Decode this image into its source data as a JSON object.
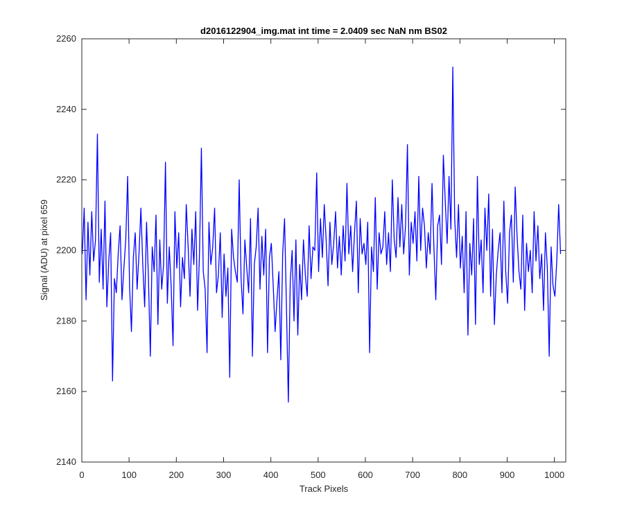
{
  "chart_data": {
    "type": "line",
    "title": "d2016122904_img.mat int time = 2.0409 sec  NaN nm BS02",
    "xlabel": "Track Pixels",
    "ylabel": "Signal (ADU) at pixel 659",
    "xlim": [
      0,
      1024
    ],
    "ylim": [
      2140,
      2260
    ],
    "xticks": [
      "0",
      "100",
      "200",
      "300",
      "400",
      "500",
      "600",
      "700",
      "800",
      "900",
      "1000"
    ],
    "xtick_values": [
      0,
      100,
      200,
      300,
      400,
      500,
      600,
      700,
      800,
      900,
      1000
    ],
    "yticks": [
      "2140",
      "2160",
      "2180",
      "2200",
      "2220",
      "2240",
      "2260"
    ],
    "ytick_values": [
      2140,
      2160,
      2180,
      2200,
      2220,
      2240,
      2260
    ],
    "grid": false,
    "series": [
      {
        "color": "#0000ff",
        "x_start": 1,
        "x_step": 4,
        "values": [
          2199,
          2212,
          2186,
          2208,
          2193,
          2211,
          2197,
          2203,
          2233,
          2191,
          2206,
          2189,
          2214,
          2184,
          2197,
          2205,
          2163,
          2192,
          2188,
          2199,
          2207,
          2186,
          2195,
          2203,
          2221,
          2190,
          2177,
          2198,
          2205,
          2189,
          2199,
          2212,
          2196,
          2184,
          2208,
          2192,
          2170,
          2201,
          2194,
          2210,
          2179,
          2203,
          2189,
          2196,
          2225,
          2185,
          2201,
          2190,
          2173,
          2211,
          2195,
          2205,
          2184,
          2198,
          2192,
          2213,
          2201,
          2187,
          2206,
          2196,
          2211,
          2183,
          2199,
          2229,
          2194,
          2189,
          2171,
          2208,
          2196,
          2201,
          2212,
          2188,
          2193,
          2205,
          2181,
          2199,
          2187,
          2195,
          2164,
          2206,
          2198,
          2194,
          2191,
          2220,
          2192,
          2182,
          2203,
          2195,
          2188,
          2209,
          2170,
          2196,
          2201,
          2212,
          2189,
          2204,
          2193,
          2206,
          2171,
          2198,
          2202,
          2190,
          2177,
          2186,
          2194,
          2169,
          2199,
          2209,
          2184,
          2157,
          2191,
          2200,
          2180,
          2203,
          2176,
          2196,
          2186,
          2203,
          2193,
          2187,
          2207,
          2192,
          2201,
          2200,
          2222,
          2194,
          2209,
          2198,
          2213,
          2203,
          2190,
          2208,
          2196,
          2202,
          2211,
          2195,
          2204,
          2193,
          2207,
          2197,
          2219,
          2199,
          2207,
          2194,
          2205,
          2214,
          2188,
          2209,
          2199,
          2202,
          2196,
          2208,
          2171,
          2201,
          2194,
          2215,
          2189,
          2205,
          2199,
          2201,
          2211,
          2196,
          2205,
          2194,
          2220,
          2203,
          2198,
          2215,
          2201,
          2213,
          2199,
          2207,
          2230,
          2193,
          2208,
          2202,
          2211,
          2197,
          2221,
          2200,
          2212,
          2207,
          2195,
          2205,
          2199,
          2219,
          2201,
          2186,
          2207,
          2210,
          2196,
          2227,
          2214,
          2202,
          2221,
          2206,
          2252,
          2209,
          2198,
          2213,
          2195,
          2204,
          2188,
          2211,
          2176,
          2202,
          2193,
          2209,
          2179,
          2221,
          2196,
          2203,
          2188,
          2212,
          2200,
          2216,
          2187,
          2206,
          2179,
          2193,
          2200,
          2205,
          2188,
          2214,
          2194,
          2185,
          2205,
          2210,
          2191,
          2218,
          2204,
          2194,
          2189,
          2210,
          2183,
          2202,
          2194,
          2200,
          2188,
          2211,
          2197,
          2207,
          2192,
          2199,
          2183,
          2205,
          2195,
          2170,
          2201,
          2190,
          2187,
          2197,
          2213,
          2199
        ]
      }
    ]
  }
}
